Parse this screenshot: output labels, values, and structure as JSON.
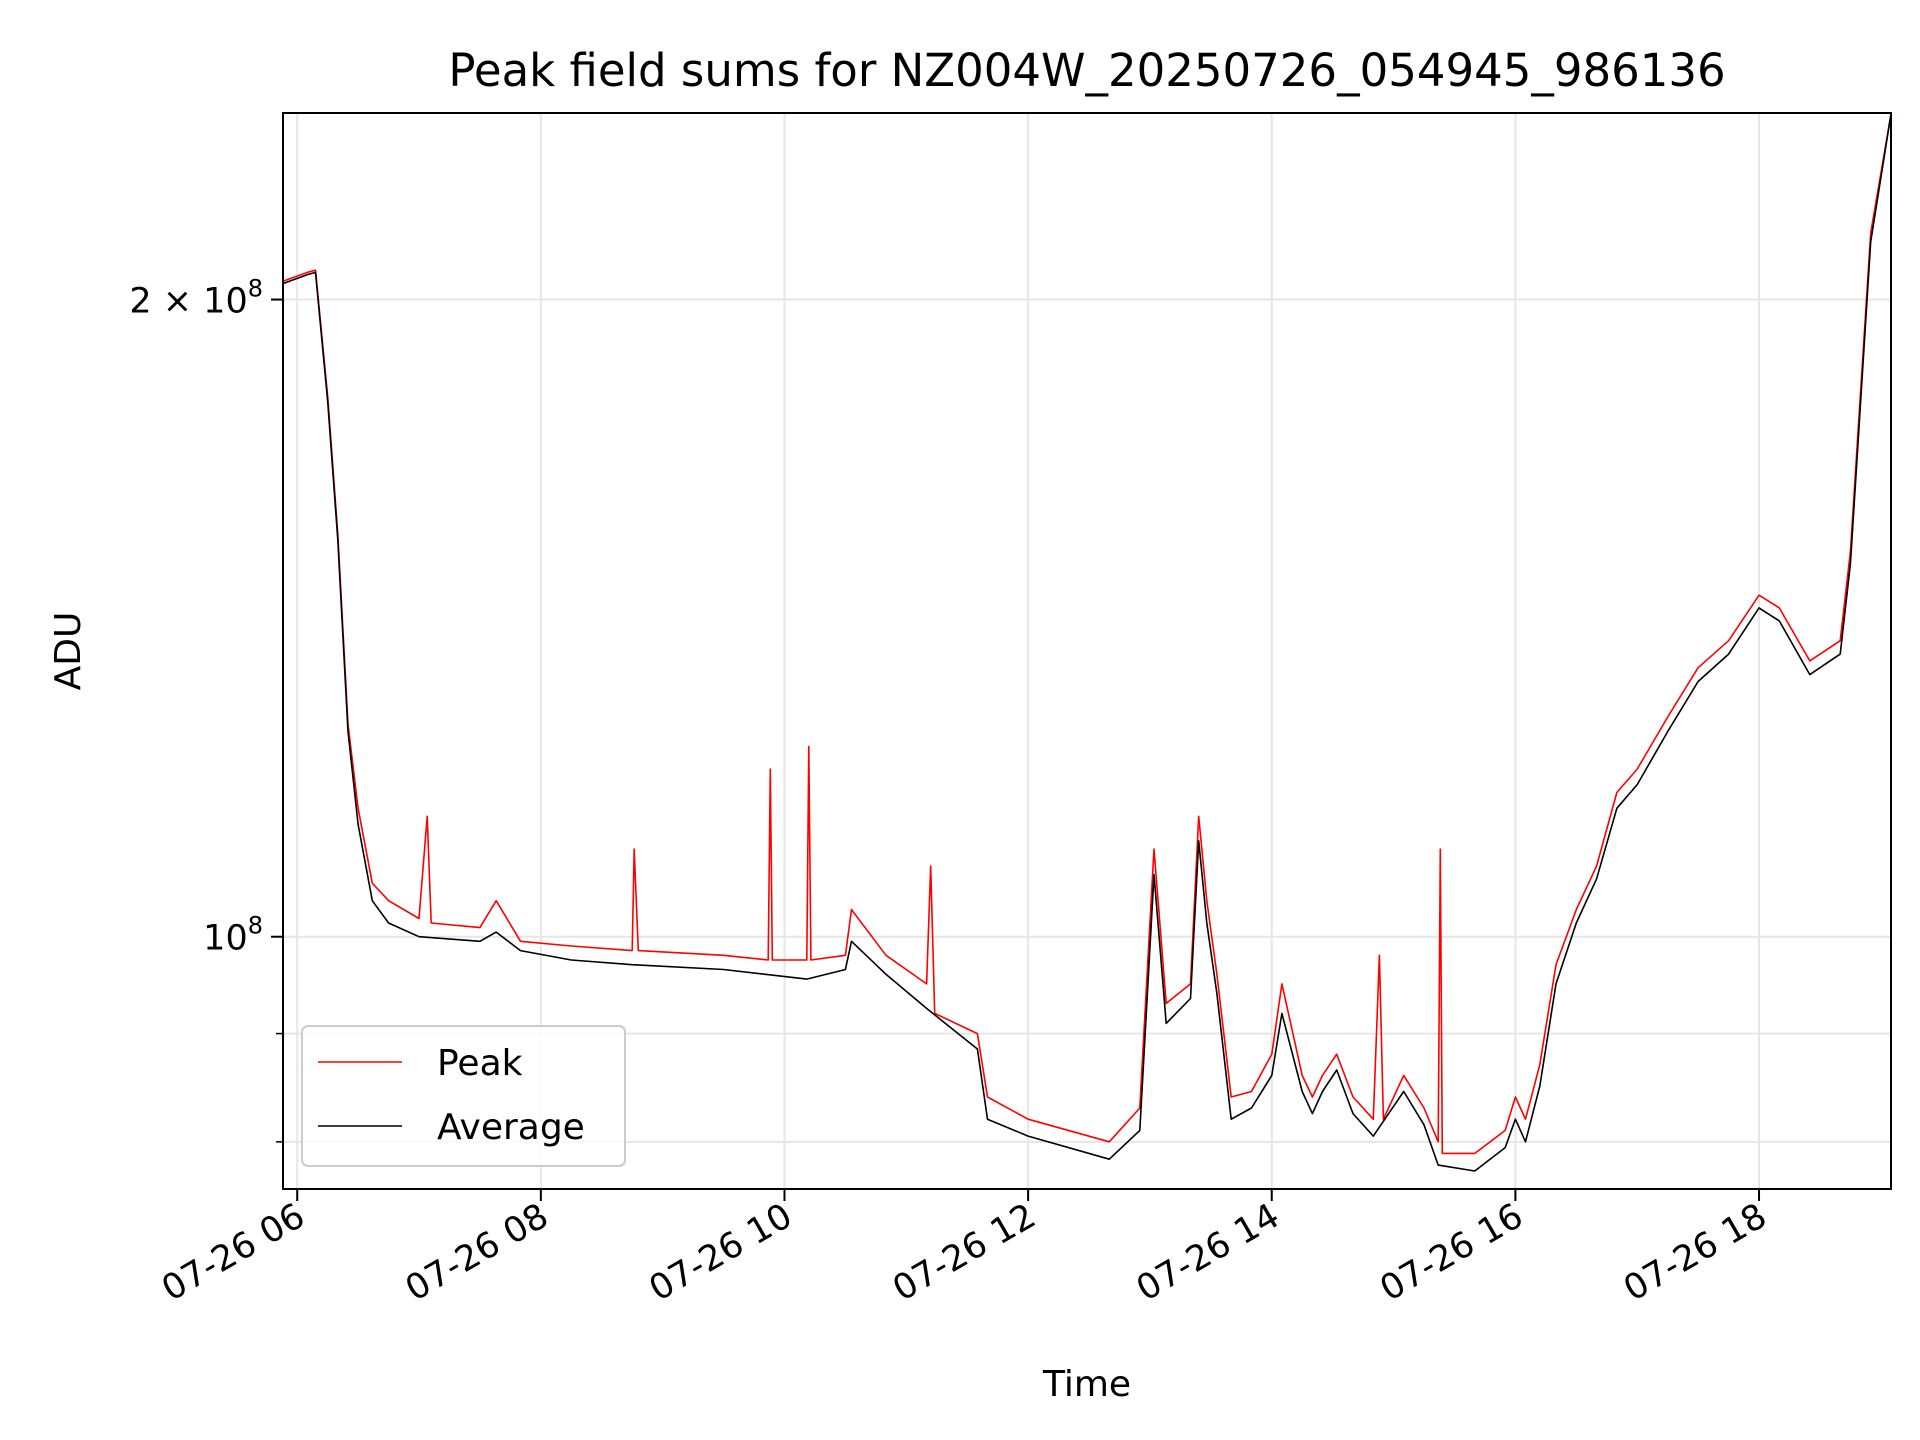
{
  "chart_data": {
    "type": "line",
    "title": "Peak field sums for NZ004W_20250726_054945_986136",
    "xlabel": "Time",
    "ylabel": "ADU",
    "x_scale": "time",
    "y_scale": "log",
    "xlim": [
      "2025-07-26 05:53",
      "2025-07-26 19:05"
    ],
    "ylim": [
      76000000,
      245000000
    ],
    "grid": true,
    "legend_position": "lower-left",
    "x_ticks": [
      {
        "value": "2025-07-26 06:00",
        "label": "07-26 06"
      },
      {
        "value": "2025-07-26 08:00",
        "label": "07-26 08"
      },
      {
        "value": "2025-07-26 10:00",
        "label": "07-26 10"
      },
      {
        "value": "2025-07-26 12:00",
        "label": "07-26 12"
      },
      {
        "value": "2025-07-26 14:00",
        "label": "07-26 14"
      },
      {
        "value": "2025-07-26 16:00",
        "label": "07-26 16"
      },
      {
        "value": "2025-07-26 18:00",
        "label": "07-26 18"
      }
    ],
    "y_ticks": [
      {
        "value": 200000000,
        "label_mant": "2",
        "label_exp": "8",
        "label_base": "10"
      },
      {
        "value": 100000000,
        "label_mant": "",
        "label_exp": "8",
        "label_base": "10"
      }
    ],
    "y_minor_ticks": [
      80000000,
      90000000
    ],
    "series": [
      {
        "name": "Peak",
        "color": "#ff0000",
        "points": [
          [
            "2025-07-26 05:53",
            204000000
          ],
          [
            "2025-07-26 06:05",
            206000000
          ],
          [
            "2025-07-26 06:09",
            206500000
          ],
          [
            "2025-07-26 06:15",
            180000000
          ],
          [
            "2025-07-26 06:20",
            155000000
          ],
          [
            "2025-07-26 06:25",
            126000000
          ],
          [
            "2025-07-26 06:30",
            115000000
          ],
          [
            "2025-07-26 06:37",
            106000000
          ],
          [
            "2025-07-26 06:45",
            104000000
          ],
          [
            "2025-07-26 07:00",
            102000000
          ],
          [
            "2025-07-26 07:04",
            114000000
          ],
          [
            "2025-07-26 07:06",
            101500000
          ],
          [
            "2025-07-26 07:30",
            101000000
          ],
          [
            "2025-07-26 07:38",
            104000000
          ],
          [
            "2025-07-26 07:50",
            99500000
          ],
          [
            "2025-07-26 08:15",
            99000000
          ],
          [
            "2025-07-26 08:45",
            98500000
          ],
          [
            "2025-07-26 08:46",
            110000000
          ],
          [
            "2025-07-26 08:48",
            98500000
          ],
          [
            "2025-07-26 09:30",
            98000000
          ],
          [
            "2025-07-26 09:52",
            97500000
          ],
          [
            "2025-07-26 09:53",
            120000000
          ],
          [
            "2025-07-26 09:54",
            97500000
          ],
          [
            "2025-07-26 10:11",
            97500000
          ],
          [
            "2025-07-26 10:12",
            123000000
          ],
          [
            "2025-07-26 10:13",
            97500000
          ],
          [
            "2025-07-26 10:30",
            98000000
          ],
          [
            "2025-07-26 10:33",
            103000000
          ],
          [
            "2025-07-26 10:50",
            98000000
          ],
          [
            "2025-07-26 11:10",
            95000000
          ],
          [
            "2025-07-26 11:12",
            108000000
          ],
          [
            "2025-07-26 11:14",
            92000000
          ],
          [
            "2025-07-26 11:35",
            90000000
          ],
          [
            "2025-07-26 11:40",
            84000000
          ],
          [
            "2025-07-26 12:00",
            82000000
          ],
          [
            "2025-07-26 12:40",
            80000000
          ],
          [
            "2025-07-26 12:55",
            83000000
          ],
          [
            "2025-07-26 13:02",
            110000000
          ],
          [
            "2025-07-26 13:08",
            93000000
          ],
          [
            "2025-07-26 13:20",
            95000000
          ],
          [
            "2025-07-26 13:24",
            114000000
          ],
          [
            "2025-07-26 13:28",
            104000000
          ],
          [
            "2025-07-26 13:33",
            96000000
          ],
          [
            "2025-07-26 13:40",
            84000000
          ],
          [
            "2025-07-26 13:50",
            84500000
          ],
          [
            "2025-07-26 14:00",
            88000000
          ],
          [
            "2025-07-26 14:05",
            95000000
          ],
          [
            "2025-07-26 14:15",
            86000000
          ],
          [
            "2025-07-26 14:20",
            84000000
          ],
          [
            "2025-07-26 14:25",
            86000000
          ],
          [
            "2025-07-26 14:32",
            88000000
          ],
          [
            "2025-07-26 14:40",
            84000000
          ],
          [
            "2025-07-26 14:50",
            82000000
          ],
          [
            "2025-07-26 14:53",
            98000000
          ],
          [
            "2025-07-26 14:55",
            82000000
          ],
          [
            "2025-07-26 15:05",
            86000000
          ],
          [
            "2025-07-26 15:15",
            83000000
          ],
          [
            "2025-07-26 15:22",
            80000000
          ],
          [
            "2025-07-26 15:23",
            110000000
          ],
          [
            "2025-07-26 15:24",
            79000000
          ],
          [
            "2025-07-26 15:40",
            79000000
          ],
          [
            "2025-07-26 15:55",
            81000000
          ],
          [
            "2025-07-26 16:00",
            84000000
          ],
          [
            "2025-07-26 16:05",
            82000000
          ],
          [
            "2025-07-26 16:12",
            87000000
          ],
          [
            "2025-07-26 16:20",
            97000000
          ],
          [
            "2025-07-26 16:30",
            103000000
          ],
          [
            "2025-07-26 16:40",
            108000000
          ],
          [
            "2025-07-26 16:50",
            117000000
          ],
          [
            "2025-07-26 17:00",
            120000000
          ],
          [
            "2025-07-26 17:15",
            127000000
          ],
          [
            "2025-07-26 17:30",
            134000000
          ],
          [
            "2025-07-26 17:45",
            138000000
          ],
          [
            "2025-07-26 18:00",
            145000000
          ],
          [
            "2025-07-26 18:10",
            143000000
          ],
          [
            "2025-07-26 18:25",
            135000000
          ],
          [
            "2025-07-26 18:40",
            138000000
          ],
          [
            "2025-07-26 18:45",
            152000000
          ],
          [
            "2025-07-26 18:55",
            215000000
          ],
          [
            "2025-07-26 19:05",
            245000000
          ]
        ]
      },
      {
        "name": "Average",
        "color": "#000000",
        "points": [
          [
            "2025-07-26 05:53",
            203500000
          ],
          [
            "2025-07-26 06:05",
            205500000
          ],
          [
            "2025-07-26 06:09",
            206000000
          ],
          [
            "2025-07-26 06:15",
            179000000
          ],
          [
            "2025-07-26 06:20",
            154000000
          ],
          [
            "2025-07-26 06:25",
            125000000
          ],
          [
            "2025-07-26 06:30",
            113000000
          ],
          [
            "2025-07-26 06:37",
            104000000
          ],
          [
            "2025-07-26 06:45",
            101500000
          ],
          [
            "2025-07-26 07:00",
            100000000
          ],
          [
            "2025-07-26 07:30",
            99500000
          ],
          [
            "2025-07-26 07:38",
            100500000
          ],
          [
            "2025-07-26 07:50",
            98500000
          ],
          [
            "2025-07-26 08:15",
            97500000
          ],
          [
            "2025-07-26 08:45",
            97000000
          ],
          [
            "2025-07-26 09:30",
            96500000
          ],
          [
            "2025-07-26 10:11",
            95500000
          ],
          [
            "2025-07-26 10:30",
            96500000
          ],
          [
            "2025-07-26 10:33",
            99500000
          ],
          [
            "2025-07-26 10:50",
            96000000
          ],
          [
            "2025-07-26 11:10",
            92500000
          ],
          [
            "2025-07-26 11:35",
            88500000
          ],
          [
            "2025-07-26 11:40",
            82000000
          ],
          [
            "2025-07-26 12:00",
            80500000
          ],
          [
            "2025-07-26 12:40",
            78500000
          ],
          [
            "2025-07-26 12:55",
            81000000
          ],
          [
            "2025-07-26 13:02",
            107000000
          ],
          [
            "2025-07-26 13:08",
            91000000
          ],
          [
            "2025-07-26 13:20",
            93500000
          ],
          [
            "2025-07-26 13:24",
            111000000
          ],
          [
            "2025-07-26 13:28",
            101500000
          ],
          [
            "2025-07-26 13:33",
            94000000
          ],
          [
            "2025-07-26 13:40",
            82000000
          ],
          [
            "2025-07-26 13:50",
            83000000
          ],
          [
            "2025-07-26 14:00",
            86000000
          ],
          [
            "2025-07-26 14:05",
            92000000
          ],
          [
            "2025-07-26 14:15",
            84500000
          ],
          [
            "2025-07-26 14:20",
            82500000
          ],
          [
            "2025-07-26 14:25",
            84500000
          ],
          [
            "2025-07-26 14:32",
            86500000
          ],
          [
            "2025-07-26 14:40",
            82500000
          ],
          [
            "2025-07-26 14:50",
            80500000
          ],
          [
            "2025-07-26 15:05",
            84500000
          ],
          [
            "2025-07-26 15:15",
            81500000
          ],
          [
            "2025-07-26 15:22",
            78000000
          ],
          [
            "2025-07-26 15:40",
            77500000
          ],
          [
            "2025-07-26 15:55",
            79500000
          ],
          [
            "2025-07-26 16:00",
            82000000
          ],
          [
            "2025-07-26 16:05",
            80000000
          ],
          [
            "2025-07-26 16:12",
            85000000
          ],
          [
            "2025-07-26 16:20",
            95000000
          ],
          [
            "2025-07-26 16:30",
            101500000
          ],
          [
            "2025-07-26 16:40",
            106500000
          ],
          [
            "2025-07-26 16:50",
            115000000
          ],
          [
            "2025-07-26 17:00",
            118000000
          ],
          [
            "2025-07-26 17:15",
            125000000
          ],
          [
            "2025-07-26 17:30",
            132000000
          ],
          [
            "2025-07-26 17:45",
            136000000
          ],
          [
            "2025-07-26 18:00",
            143000000
          ],
          [
            "2025-07-26 18:10",
            141000000
          ],
          [
            "2025-07-26 18:25",
            133000000
          ],
          [
            "2025-07-26 18:40",
            136000000
          ],
          [
            "2025-07-26 18:45",
            150000000
          ],
          [
            "2025-07-26 18:55",
            213000000
          ],
          [
            "2025-07-26 19:05",
            245000000
          ]
        ]
      }
    ]
  }
}
